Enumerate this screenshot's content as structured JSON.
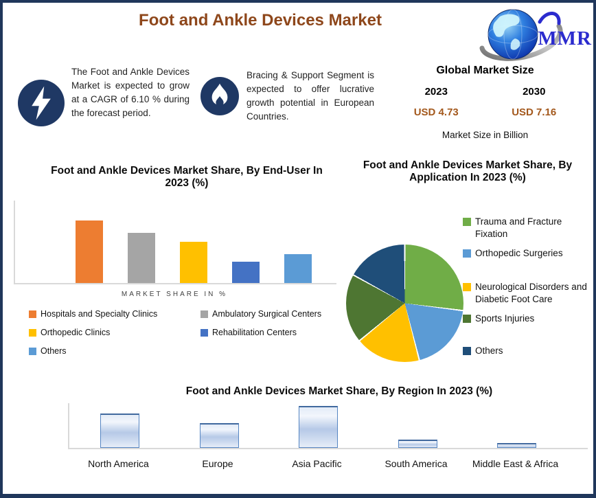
{
  "page": {
    "title": "Foot and Ankle Devices Market"
  },
  "logo": {
    "text": "MMR"
  },
  "highlights": [
    {
      "icon": "lightning-icon",
      "text": "The Foot and Ankle Devices Market is expected to grow at a CAGR of 6.10 % during the forecast period."
    },
    {
      "icon": "flame-icon",
      "text": "Bracing & Support Segment is expected to offer lucrative growth potential in European Countries."
    }
  ],
  "market_size": {
    "title": "Global Market Size",
    "start_year": "2023",
    "end_year": "2030",
    "start_value": "USD 4.73",
    "end_value": "USD 7.16",
    "note": "Market Size in Billion"
  },
  "chart_data": [
    {
      "id": "end-user",
      "type": "bar",
      "title": "Foot and Ankle Devices  Market Share, By End-User In 2023 (%)",
      "xlabel": "MARKET SHARE IN %",
      "categories": [
        "Hospitals and Specialty Clinics",
        "Ambulatory Surgical Centers",
        "Orthopedic Clinics",
        "Rehabilitation Centers",
        "Others"
      ],
      "values": [
        35,
        28,
        23,
        12,
        16
      ],
      "colors": [
        "#ED7D31",
        "#A5A5A5",
        "#FFC000",
        "#4472C4",
        "#5B9BD5"
      ],
      "ylim": [
        0,
        40
      ],
      "grid": false,
      "legend_position": "bottom"
    },
    {
      "id": "application",
      "type": "pie",
      "title": "Foot and Ankle Devices Market Share, By Application In 2023 (%)",
      "labels": [
        "Trauma and Fracture Fixation",
        "Orthopedic Surgeries",
        "Neurological Disorders and Diabetic Foot Care",
        "Sports Injuries",
        "Others"
      ],
      "values": [
        27,
        19,
        18,
        19,
        17
      ],
      "colors": [
        "#70AD47",
        "#5B9BD5",
        "#FFC000",
        "#4E7632",
        "#1F4E79"
      ],
      "legend_position": "right"
    },
    {
      "id": "region",
      "type": "bar",
      "title": "Foot and Ankle Devices Market Share, By Region In 2023 (%)",
      "categories": [
        "North America",
        "Europe",
        "Asia Pacific",
        "South America",
        "Middle East & Africa"
      ],
      "values": [
        30,
        22,
        37,
        7,
        4
      ],
      "bar_fill": "#C9D9EF",
      "bar_border": "#5585C2",
      "ylim": [
        0,
        40
      ],
      "grid": false
    }
  ],
  "colors": {
    "frame_border": "#20375B",
    "title_brown": "#8E471B",
    "usd_brown": "#A3581C",
    "icon_navy": "#1F3864",
    "axis_gray": "#D9D9D9",
    "logo_blue": "#2B2BCE"
  }
}
